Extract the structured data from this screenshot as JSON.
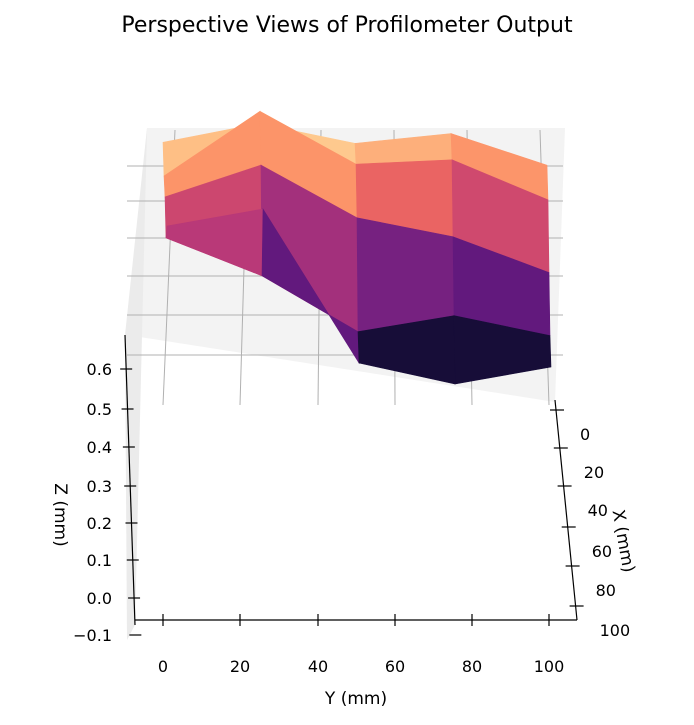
{
  "chart_data": {
    "type": "surface3d",
    "title": "Perspective Views of Profilometer Output",
    "xlabel": "X (mm)",
    "ylabel": "Y (mm)",
    "zlabel": "Z (mm)",
    "colormap": "magma",
    "x_ticks": [
      "0",
      "20",
      "40",
      "60",
      "80",
      "100"
    ],
    "y_ticks": [
      "0",
      "20",
      "40",
      "60",
      "80",
      "100"
    ],
    "z_ticks": [
      "−0.1",
      "0.0",
      "0.1",
      "0.2",
      "0.3",
      "0.4",
      "0.5",
      "0.6"
    ],
    "xlim": [
      0,
      100
    ],
    "ylim": [
      0,
      100
    ],
    "zlim": [
      -0.1,
      0.65
    ],
    "grid": true,
    "x": [
      0,
      25,
      50,
      75,
      100
    ],
    "y": [
      0,
      25,
      50,
      75,
      100
    ],
    "z": [
      [
        0.55,
        0.62,
        0.56,
        0.6,
        0.5
      ],
      [
        0.45,
        0.66,
        0.5,
        0.52,
        0.4
      ],
      [
        0.4,
        0.5,
        0.35,
        0.3,
        0.2
      ],
      [
        0.3,
        0.2,
        0.05,
        0.1,
        0.05
      ],
      [
        0.35,
        0.4,
        0.0,
        -0.05,
        0.0
      ]
    ]
  }
}
